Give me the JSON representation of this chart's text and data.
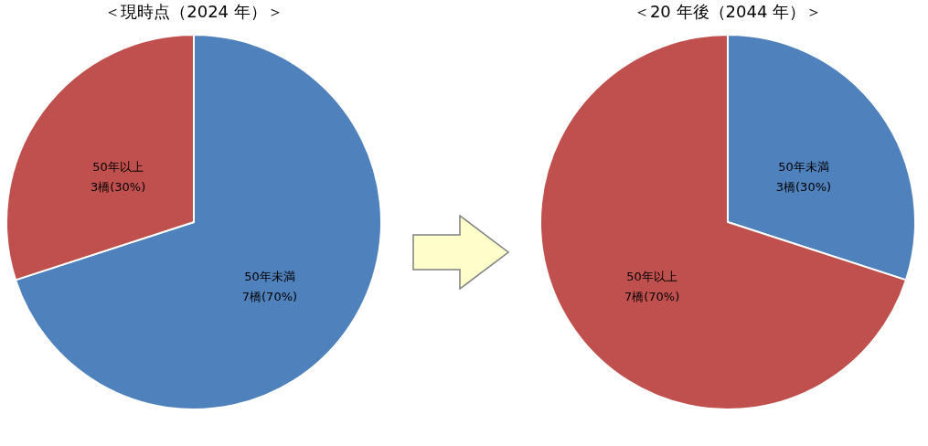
{
  "chart_data": [
    {
      "type": "pie",
      "title": "＜現時点（2024 年）＞",
      "categories": [
        "50年未満",
        "50年以上"
      ],
      "values": [
        7,
        3
      ],
      "colors": [
        "#4f81bd",
        "#c0504d"
      ],
      "value_labels": [
        "7橋(70%)",
        "3橋(30%)"
      ]
    },
    {
      "type": "pie",
      "title": "＜20 年後（2044 年）＞",
      "categories": [
        "50年未満",
        "50年以上"
      ],
      "values": [
        3,
        7
      ],
      "colors": [
        "#4f81bd",
        "#c0504d"
      ],
      "value_labels": [
        "3橋(30%)",
        "7橋(70%)"
      ]
    }
  ]
}
